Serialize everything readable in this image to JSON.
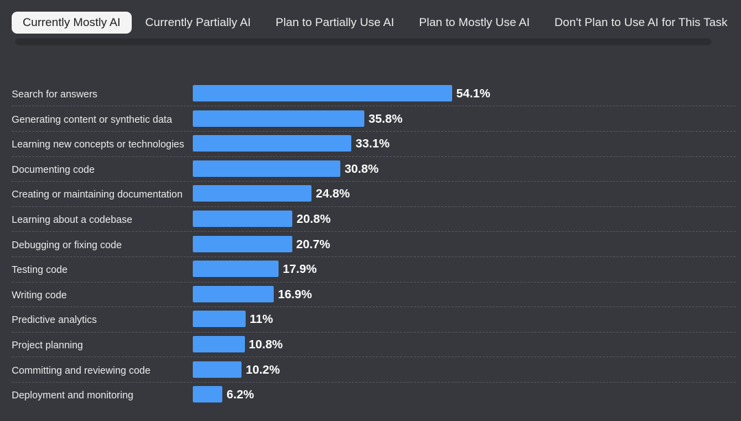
{
  "tabs": [
    {
      "label": "Currently Mostly AI",
      "active": true
    },
    {
      "label": "Currently Partially AI",
      "active": false
    },
    {
      "label": "Plan to Partially Use AI",
      "active": false
    },
    {
      "label": "Plan to Mostly Use AI",
      "active": false
    },
    {
      "label": "Don't Plan to Use AI for This Task",
      "active": false
    }
  ],
  "colors": {
    "background": "#36383d",
    "bar": "#4a9af7",
    "active_tab_bg": "#f4f4f4"
  },
  "chart_data": {
    "type": "bar",
    "orientation": "horizontal",
    "categories": [
      "Search for answers",
      "Generating content or synthetic data",
      "Learning new concepts or technologies",
      "Documenting code",
      "Creating or maintaining documentation",
      "Learning about a codebase",
      "Debugging or fixing code",
      "Testing code",
      "Writing code",
      "Predictive analytics",
      "Project planning",
      "Committing and reviewing code",
      "Deployment and monitoring"
    ],
    "values": [
      54.1,
      35.8,
      33.1,
      30.8,
      24.8,
      20.8,
      20.7,
      17.9,
      16.9,
      11,
      10.8,
      10.2,
      6.2
    ],
    "value_labels": [
      "54.1%",
      "35.8%",
      "33.1%",
      "30.8%",
      "24.8%",
      "20.8%",
      "20.7%",
      "17.9%",
      "16.9%",
      "11%",
      "10.8%",
      "10.2%",
      "6.2%"
    ],
    "unit": "%",
    "xlim": [
      0,
      100
    ],
    "grid": false,
    "title": "",
    "xlabel": "",
    "ylabel": ""
  }
}
